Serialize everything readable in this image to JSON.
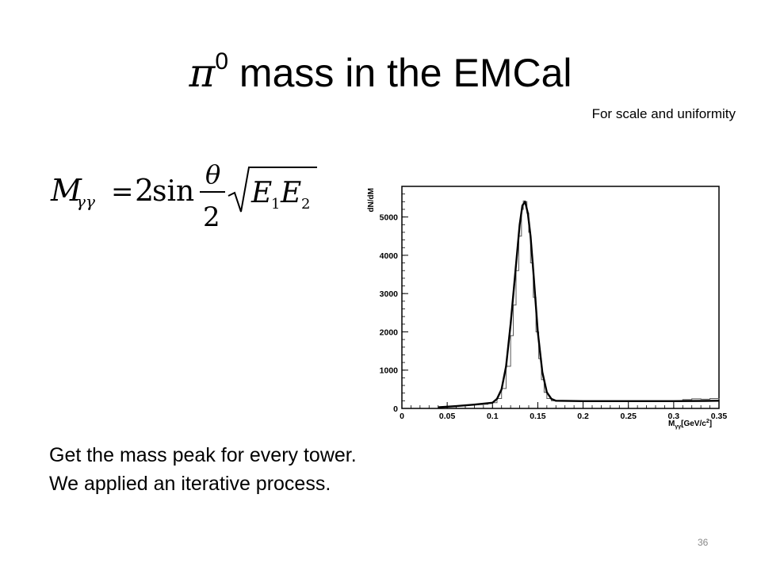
{
  "slide": {
    "title_symbol": "π",
    "title_sup": "0",
    "title_text": " mass in the EMCal",
    "note": "For scale and uniformity",
    "lines": [
      "Get the mass peak for every tower.",
      "We applied an iterative process."
    ],
    "page_number": "36"
  },
  "formula": {
    "lhs": "M",
    "lhs_sub": "γγ",
    "equals": "=",
    "coef": "2",
    "func": "sin",
    "numerator": "θ",
    "denominator": "2",
    "e1": "E",
    "e1_sub": "1",
    "e2": "E",
    "e2_sub": "2"
  },
  "chart_data": {
    "type": "line",
    "xlabel": "M",
    "xlabel_sub": "γγ",
    "xlabel_unit": "[GeV/c",
    "xlabel_sup": "2",
    "xlabel_end": "]",
    "ylabel": "dN/dM",
    "xlim": [
      0,
      0.35
    ],
    "ylim": [
      0,
      5800
    ],
    "xticks": [
      "0",
      "0.05",
      "0.1",
      "0.15",
      "0.2",
      "0.25",
      "0.3",
      "0.35"
    ],
    "yticks": [
      "0",
      "1000",
      "2000",
      "3000",
      "4000",
      "5000"
    ],
    "series": [
      {
        "style": "histogram",
        "x": [
          0.05,
          0.06,
          0.07,
          0.08,
          0.09,
          0.095,
          0.1,
          0.105,
          0.11,
          0.115,
          0.12,
          0.123,
          0.126,
          0.129,
          0.132,
          0.134,
          0.136,
          0.138,
          0.14,
          0.142,
          0.145,
          0.148,
          0.151,
          0.154,
          0.157,
          0.16,
          0.165,
          0.17,
          0.18,
          0.2,
          0.25,
          0.3,
          0.31,
          0.32,
          0.33,
          0.34,
          0.35
        ],
        "values": [
          50,
          70,
          90,
          100,
          110,
          130,
          150,
          260,
          520,
          1100,
          1900,
          2700,
          3600,
          4500,
          5200,
          5420,
          5400,
          5100,
          4600,
          3800,
          2900,
          2000,
          1300,
          750,
          420,
          260,
          200,
          190,
          190,
          185,
          185,
          190,
          230,
          250,
          240,
          260,
          230
        ]
      },
      {
        "style": "fit",
        "x": [
          0.04,
          0.06,
          0.08,
          0.1,
          0.105,
          0.11,
          0.115,
          0.12,
          0.125,
          0.13,
          0.133,
          0.136,
          0.139,
          0.142,
          0.145,
          0.15,
          0.155,
          0.16,
          0.165,
          0.17,
          0.2,
          0.25,
          0.3,
          0.35
        ],
        "values": [
          30,
          60,
          100,
          150,
          250,
          500,
          1100,
          2200,
          3500,
          4800,
          5300,
          5400,
          5100,
          4500,
          3600,
          2000,
          950,
          420,
          250,
          200,
          190,
          190,
          190,
          200
        ]
      }
    ]
  }
}
